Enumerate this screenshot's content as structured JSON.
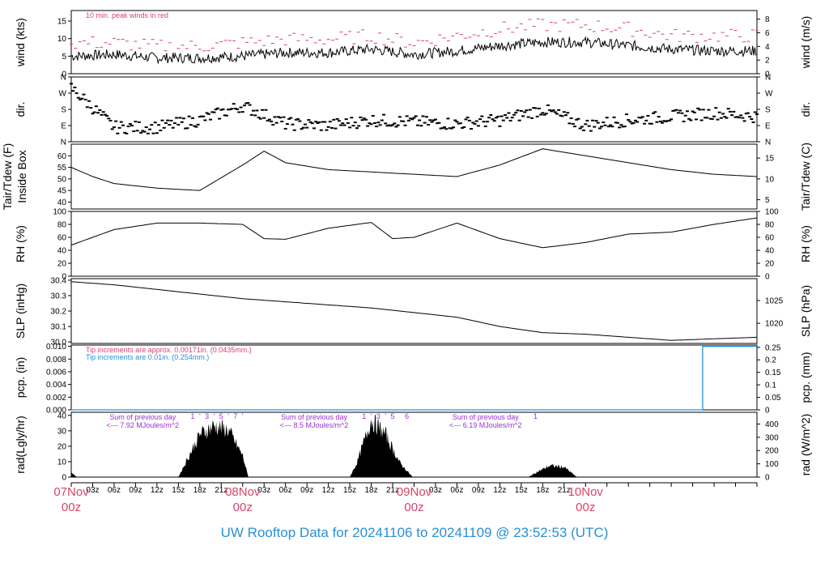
{
  "footer_title": "UW Rooftop Data for 20241106  to  20241109 @ 23:52:53  (UTC)",
  "colors": {
    "accent_red": "#d9436a",
    "accent_blue": "#2a8fd6",
    "accent_purple": "#9b2fd6",
    "line": "#000000"
  },
  "chart_data": [
    {
      "id": "wind",
      "type": "line",
      "ylabel_left": "wind (kts)",
      "ylabel_right": "wind (m/s)",
      "yticks_left": [
        "0",
        "5",
        "10",
        "15"
      ],
      "ylim_left": [
        0,
        18
      ],
      "yticks_right": [
        "0",
        "2",
        "4",
        "6",
        "8"
      ],
      "annotation": "10 min. peak winds in red",
      "series": [
        {
          "name": "wind",
          "x_hours": [
            0,
            6,
            12,
            18,
            24,
            30,
            36,
            42,
            48,
            54,
            60,
            66,
            72,
            78,
            84,
            90,
            96
          ],
          "values": [
            5,
            5.5,
            4.5,
            4.5,
            5,
            6,
            6,
            7,
            5.5,
            6.5,
            8,
            9,
            9,
            8,
            7,
            6.5,
            6.5
          ]
        },
        {
          "name": "10 min. peak winds",
          "x_hours": [
            0,
            6,
            12,
            18,
            24,
            30,
            36,
            42,
            48,
            54,
            60,
            66,
            72,
            78,
            84,
            90,
            96
          ],
          "values": [
            8,
            8,
            7,
            7,
            8,
            9,
            9,
            10,
            8,
            10,
            12,
            13,
            13,
            12,
            10,
            10,
            10
          ]
        }
      ]
    },
    {
      "id": "dir",
      "type": "scatter",
      "ylabel_left": "dir.",
      "ylabel_right": "dir.",
      "yticks_left": [
        "N",
        "E",
        "S",
        "W",
        "N"
      ],
      "yticks_right": [
        "N",
        "E",
        "S",
        "W",
        "N"
      ],
      "ylim_left": [
        0,
        360
      ],
      "series": [
        {
          "name": "direction",
          "x_hours": [
            0,
            6,
            12,
            18,
            24,
            30,
            36,
            42,
            48,
            54,
            60,
            66,
            72,
            78,
            84,
            90,
            96
          ],
          "values": [
            300,
            80,
            80,
            120,
            200,
            100,
            90,
            120,
            110,
            100,
            120,
            180,
            90,
            120,
            140,
            160,
            140
          ]
        }
      ]
    },
    {
      "id": "temp",
      "type": "line",
      "ylabel_left": "Tair/Tdew (F)",
      "ylabel_left2": "Inside Box",
      "ylabel_right": "Tair/Tdew (C)",
      "yticks_left": [
        "40",
        "45",
        "50",
        "55",
        "60"
      ],
      "ylim_left": [
        37,
        65
      ],
      "yticks_right": [
        "5",
        "10",
        "15"
      ],
      "series": [
        {
          "name": "temperature",
          "x_hours": [
            0,
            3,
            6,
            12,
            18,
            24,
            27,
            30,
            36,
            42,
            48,
            54,
            60,
            66,
            72,
            78,
            84,
            90,
            96
          ],
          "values": [
            55,
            51,
            48,
            46,
            45,
            56,
            62,
            57,
            54,
            53,
            52,
            51,
            56,
            63,
            60,
            57,
            54,
            52,
            51
          ]
        }
      ]
    },
    {
      "id": "rh",
      "type": "line",
      "ylabel_left": "RH (%)",
      "ylabel_right": "RH (%)",
      "yticks_left": [
        "0",
        "20",
        "40",
        "60",
        "80",
        "100"
      ],
      "ylim_left": [
        0,
        100
      ],
      "yticks_right": [
        "0",
        "20",
        "40",
        "60",
        "80",
        "100"
      ],
      "series": [
        {
          "name": "rh",
          "x_hours": [
            0,
            6,
            12,
            18,
            24,
            27,
            30,
            36,
            42,
            45,
            48,
            54,
            60,
            66,
            72,
            78,
            84,
            90,
            96
          ],
          "values": [
            48,
            72,
            82,
            82,
            80,
            58,
            57,
            74,
            83,
            58,
            60,
            82,
            58,
            44,
            52,
            65,
            68,
            80,
            90
          ]
        }
      ]
    },
    {
      "id": "slp",
      "type": "line",
      "ylabel_left": "SLP (inHg)",
      "ylabel_right": "SLP (hPa)",
      "yticks_left": [
        "30.0",
        "30.1",
        "30.2",
        "30.3",
        "30.4"
      ],
      "ylim_left": [
        29.99,
        30.41
      ],
      "yticks_right": [
        "1020",
        "1025"
      ],
      "series": [
        {
          "name": "slp",
          "x_hours": [
            0,
            6,
            12,
            18,
            24,
            30,
            36,
            42,
            48,
            54,
            60,
            66,
            72,
            78,
            84,
            90,
            96
          ],
          "values": [
            30.39,
            30.37,
            30.34,
            30.31,
            30.28,
            30.26,
            30.24,
            30.22,
            30.19,
            30.16,
            30.1,
            30.06,
            30.05,
            30.03,
            30.01,
            30.02,
            30.03
          ]
        }
      ]
    },
    {
      "id": "pcp",
      "type": "line",
      "ylabel_left": "pcp. (in)",
      "ylabel_right": "pcp. (mm)",
      "yticks_left": [
        "0.000",
        "0.002",
        "0.004",
        "0.006",
        "0.008",
        "0.010"
      ],
      "ylim_left": [
        0,
        0.0102
      ],
      "yticks_right": [
        "0",
        "0.05",
        "0.1",
        "0.15",
        "0.2",
        "0.25"
      ],
      "note_red": "Tip increments are approx. 0.00171in. (0.0435mm.)",
      "note_blue": "Tip increments are 0.01in. (0.254mm.)",
      "series": [
        {
          "name": "pcp",
          "x_hours": [
            0,
            88.4,
            88.4,
            96
          ],
          "values": [
            0,
            0,
            0.01,
            0.01
          ]
        }
      ]
    },
    {
      "id": "rad",
      "type": "area",
      "ylabel_left": "rad(Lgly/hr)",
      "ylabel_right": "rad (W/m^2)",
      "yticks_left": [
        "0",
        "10",
        "20",
        "30",
        "40"
      ],
      "ylim_left": [
        0,
        42
      ],
      "yticks_right": [
        "0",
        "100",
        "200",
        "300",
        "400"
      ],
      "daily_sums": [
        {
          "line1": "Sum of previous day",
          "line2": "<--- 7.92 MJoules/m^2",
          "x_hours": 10
        },
        {
          "line1": "Sum of previous day",
          "line2": "<--- 8.5 MJoules/m^2",
          "x_hours": 34
        },
        {
          "line1": "Sum of previous day",
          "line2": "<--- 6.19 MJoules/m^2",
          "x_hours": 58
        }
      ],
      "hour_marks": [
        {
          "x_hours": 17,
          "text": "1"
        },
        {
          "x_hours": 18,
          "text": "'"
        },
        {
          "x_hours": 19,
          "text": "3"
        },
        {
          "x_hours": 20,
          "text": "'"
        },
        {
          "x_hours": 21,
          "text": "5"
        },
        {
          "x_hours": 22,
          "text": "'"
        },
        {
          "x_hours": 23,
          "text": "7"
        },
        {
          "x_hours": 24,
          "text": "'"
        },
        {
          "x_hours": 41,
          "text": "1"
        },
        {
          "x_hours": 42,
          "text": "'"
        },
        {
          "x_hours": 43,
          "text": "3"
        },
        {
          "x_hours": 44,
          "text": "'"
        },
        {
          "x_hours": 45,
          "text": "5"
        },
        {
          "x_hours": 47,
          "text": "6"
        },
        {
          "x_hours": 65,
          "text": "1"
        }
      ],
      "series": [
        {
          "name": "radiation",
          "x_hours": [
            0,
            0.8,
            15,
            16,
            18,
            20,
            22,
            24,
            24.8,
            39,
            40,
            41,
            42,
            43,
            44,
            46,
            47.8,
            64,
            65,
            67,
            69,
            70.8,
            72
          ],
          "values": [
            3,
            0,
            0,
            10,
            30,
            36,
            33,
            15,
            0,
            0,
            10,
            25,
            40,
            35,
            30,
            10,
            0,
            0,
            3,
            8,
            7,
            0,
            0
          ]
        }
      ]
    }
  ],
  "x_axis": {
    "hour_labels": [
      "03z",
      "06z",
      "09z",
      "12z",
      "15z",
      "18z",
      "21z",
      "03z",
      "06z",
      "09z",
      "12z",
      "15z",
      "18z",
      "21z",
      "03z",
      "06z",
      "09z",
      "12z",
      "15z",
      "18z",
      "21z"
    ],
    "day_labels": [
      {
        "date": "07Nov",
        "time": "00z"
      },
      {
        "date": "08Nov",
        "time": "00z"
      },
      {
        "date": "09Nov",
        "time": "00z"
      },
      {
        "date": "10Nov",
        "time": "00z"
      }
    ]
  }
}
